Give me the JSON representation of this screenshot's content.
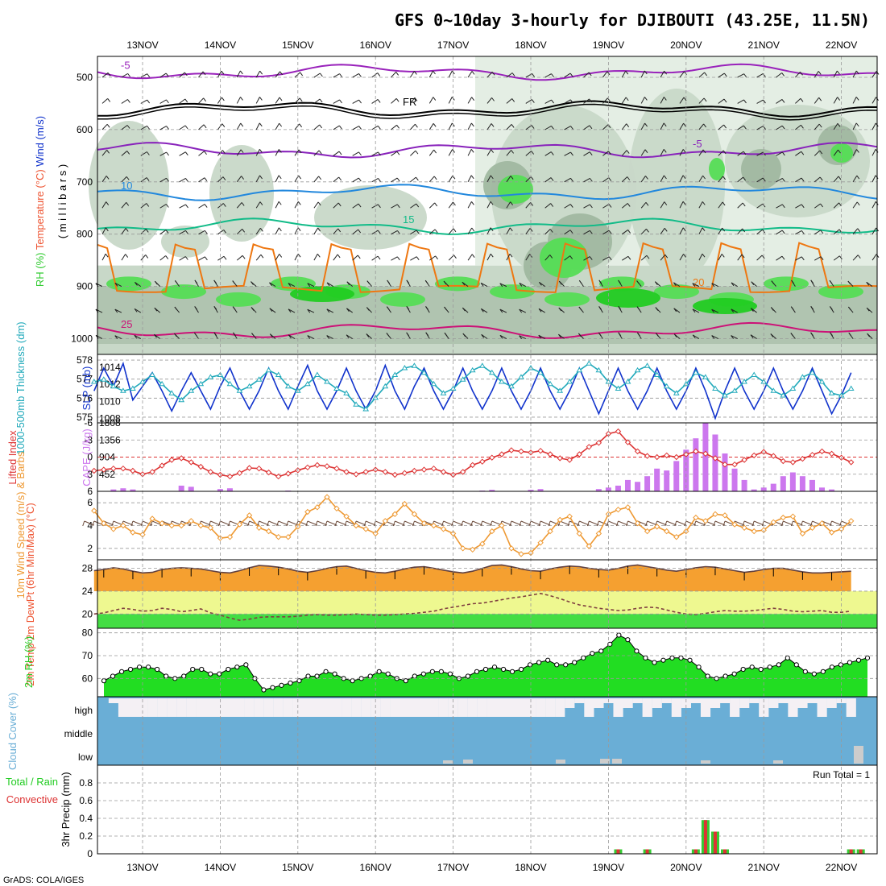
{
  "title": "GFS 0~10day 3-hourly for DJIBOUTI (43.25E, 11.5N)",
  "credit": "GrADS: COLA/IGES",
  "run_total": "Run Total = 1",
  "chart_data": [
    {
      "panel": "upper-air",
      "type": "heatmap",
      "ylabel_parts": [
        "RH (%)",
        "Temperature (°C)",
        "Wind (m/s)"
      ],
      "ylabel_unit": "( m i l l i b a r s )",
      "yticks": [
        "500",
        "600",
        "700",
        "800",
        "900",
        "1000"
      ],
      "ylim": [
        1030,
        460
      ],
      "isotherms": [
        {
          "label": "-5",
          "level": 490,
          "color": "#9922bb"
        },
        {
          "label": "FR",
          "level": 560,
          "color": "#000000"
        },
        {
          "label": "-5",
          "level": 640,
          "color": "#8822bb"
        },
        {
          "label": "10",
          "level": 720,
          "color": "#2288dd"
        },
        {
          "label": "15",
          "level": 785,
          "color": "#11bb88"
        },
        {
          "label": "20",
          "level": 905,
          "color": "#ee7711"
        },
        {
          "label": "25",
          "level": 985,
          "color": "#cc1177"
        }
      ],
      "colors": {
        "rh_light": "#e4eee4",
        "rh_mid": "#c8d8c8",
        "rh_dark": "#a0b8a0",
        "rh_green": "#55dd55",
        "rh_bright": "#22cc22"
      }
    },
    {
      "panel": "thickness-slp",
      "type": "line",
      "ylabel_left": "1000-500mb Thickness (dm)",
      "ylabel_right": "SLP (mb)",
      "yticks_left": [
        "575",
        "576",
        "577",
        "578"
      ],
      "yticks_right": [
        "1008",
        "1010",
        "1012",
        "1014"
      ],
      "series": [
        {
          "name": "SLP (mb)",
          "color": "#1133cc",
          "values": [
            1012,
            1014.5,
            1012.5,
            1015,
            1011,
            1012.5,
            1014,
            1012,
            1009.8,
            1012,
            1014,
            1012,
            1010,
            1012.5,
            1014.5,
            1012,
            1010,
            1012,
            1014.5,
            1012,
            1010,
            1012.5,
            1014.8,
            1012,
            1010,
            1012,
            1014.5,
            1012,
            1010,
            1012,
            1014.8,
            1012,
            1010,
            1012.5,
            1014.5,
            1012,
            1010,
            1012,
            1014.5,
            1012,
            1010,
            1012,
            1014.5,
            1012,
            1010,
            1012,
            1014.5,
            1012,
            1010,
            1012,
            1014.5,
            1012,
            1009.5,
            1012,
            1014.5,
            1012,
            1010,
            1012,
            1014.5,
            1012,
            1010,
            1012,
            1014.5,
            1012,
            1009,
            1012,
            1014.5,
            1012,
            1010,
            1012,
            1014.5,
            1012,
            1010,
            1012,
            1014.5,
            1012,
            1009.5,
            1011.5,
            1014
          ]
        },
        {
          "name": "1000-500mb Thickness (dm)",
          "color": "#22aabb",
          "values": [
            576.6,
            576.7,
            576.4,
            576.2,
            576.3,
            576.6,
            576.9,
            576.5,
            576.1,
            575.8,
            576.2,
            576.5,
            576.8,
            576.9,
            576.5,
            576.2,
            576.4,
            576.7,
            577.1,
            576.9,
            576.4,
            576.2,
            576.5,
            576.9,
            576.6,
            576.3,
            576.1,
            575.6,
            575.4,
            575.9,
            576.4,
            576.9,
            577.2,
            577.3,
            577.0,
            576.5,
            576.1,
            576.3,
            576.7,
            577.1,
            577.3,
            577.0,
            576.6,
            576.4,
            576.8,
            577.2,
            577.0,
            576.5,
            576.2,
            576.6,
            577.1,
            577.4,
            577.1,
            576.6,
            576.3,
            576.6,
            577.1,
            577.3,
            576.9,
            576.4,
            576.1,
            576.5,
            577.0,
            576.8,
            576.3,
            576.0,
            576.2,
            576.6,
            576.9,
            576.6,
            576.2,
            576.0,
            576.3,
            576.8,
            577.0,
            576.6,
            576.1,
            576.0,
            576.3
          ]
        }
      ]
    },
    {
      "panel": "li-cape",
      "type": "bar",
      "ylabel_left": "Lifted Index",
      "ylabel_right": "CAPE (J/kg)",
      "yticks_left": [
        "-6",
        "-3",
        "0",
        "3",
        "6"
      ],
      "yticks_right": [
        "452",
        "904",
        "1356",
        "1808"
      ],
      "series": [
        {
          "name": "Lifted Index",
          "color": "#dd3333",
          "values": [
            2.4,
            2.2,
            2.0,
            2.0,
            2.4,
            3.0,
            2.6,
            1.5,
            0.5,
            0.2,
            0.9,
            1.7,
            2.6,
            3.1,
            3.4,
            2.8,
            1.9,
            2.0,
            2.7,
            3.4,
            2.9,
            2.3,
            1.8,
            1.4,
            1.6,
            2.0,
            2.6,
            3.0,
            2.6,
            2.2,
            2.6,
            3.1,
            2.8,
            2.4,
            2.2,
            2.0,
            2.6,
            3.1,
            2.6,
            1.4,
            0.8,
            0.1,
            -0.5,
            -1.2,
            -1.0,
            -0.8,
            -1.1,
            -0.5,
            0.2,
            0.5,
            -0.5,
            -1.8,
            -2.5,
            -4.1,
            -4.5,
            -2.6,
            -1.0,
            -0.2,
            0.0,
            -0.3,
            0.0,
            -0.5,
            -1.0,
            -0.6,
            0.2,
            1.3,
            1.3,
            0.5,
            -0.3,
            -0.9,
            -0.2,
            0.7,
            0.9,
            0.3,
            -0.4,
            -1.0,
            -0.6,
            0.1,
            0.9
          ]
        },
        {
          "name": "CAPE (J/kg)",
          "color": "#cc77ee",
          "values": [
            0,
            0,
            50,
            80,
            50,
            0,
            0,
            0,
            0,
            150,
            120,
            0,
            0,
            60,
            80,
            0,
            0,
            0,
            0,
            0,
            20,
            0,
            0,
            0,
            0,
            0,
            0,
            0,
            0,
            0,
            0,
            0,
            0,
            0,
            0,
            0,
            0,
            0,
            0,
            0,
            20,
            40,
            0,
            0,
            0,
            40,
            60,
            0,
            0,
            0,
            0,
            0,
            60,
            100,
            150,
            300,
            250,
            400,
            600,
            550,
            800,
            1100,
            1400,
            1800,
            1500,
            1000,
            600,
            300,
            50,
            100,
            200,
            400,
            500,
            400,
            300,
            100,
            50,
            0,
            0
          ]
        }
      ]
    },
    {
      "panel": "wind10m",
      "type": "line",
      "ylabel": "10m Wind Speed (m/s) & Barbs",
      "yticks": [
        "2",
        "4",
        "6"
      ],
      "series": [
        {
          "name": "10m Wind Speed",
          "color": "#ee9933",
          "values": [
            5.3,
            4.2,
            3.7,
            4.0,
            3.4,
            3.2,
            4.6,
            4.2,
            4.0,
            4.0,
            4.4,
            4.0,
            3.8,
            2.9,
            3.0,
            4.1,
            4.9,
            3.8,
            3.5,
            3.0,
            3.0,
            3.9,
            5.2,
            5.6,
            6.5,
            5.5,
            4.8,
            4.0,
            3.7,
            3.3,
            4.4,
            5.0,
            5.9,
            5.0,
            4.2,
            4.0,
            3.7,
            3.3,
            2.0,
            1.9,
            2.4,
            3.5,
            4.0,
            2.0,
            1.5,
            1.6,
            2.5,
            3.5,
            4.5,
            4.8,
            3.3,
            2.2,
            3.3,
            5.0,
            5.4,
            5.6,
            4.2,
            3.5,
            3.9,
            3.5,
            3.0,
            3.5,
            4.7,
            4.4,
            5.0,
            4.9,
            4.1,
            3.8,
            3.5,
            3.6,
            4.3,
            4.7,
            4.8,
            3.3,
            3.8,
            4.2,
            3.4,
            3.7,
            4.4
          ]
        }
      ]
    },
    {
      "panel": "temp2m",
      "type": "area",
      "ylabel": "2m Temp 2m DewPt (6hr Min/Max) (°C)",
      "yticks": [
        "20",
        "24",
        "28"
      ],
      "series": [
        {
          "name": "2m Temp",
          "color": "#f5a030",
          "values": [
            27.6,
            27.8,
            28.1,
            27.9,
            27.5,
            27.2,
            27.3,
            27.8,
            28.0,
            28.1,
            28.0,
            27.9,
            27.6,
            27.3,
            27.2,
            27.6,
            28.1,
            28.5,
            28.4,
            28.2,
            27.9,
            27.5,
            27.3,
            27.6,
            28.0,
            28.3,
            28.4,
            28.0,
            27.6,
            27.3,
            27.2,
            27.5,
            27.9,
            28.2,
            28.3,
            28.0,
            27.7,
            27.4,
            27.2,
            27.5,
            28.0,
            28.5,
            28.6,
            28.3,
            27.9,
            27.6,
            27.5,
            27.9,
            28.2,
            28.4,
            28.3,
            28.0,
            27.8,
            27.7,
            28.0,
            28.4,
            28.6,
            28.3,
            28.0,
            27.7,
            27.5,
            27.8,
            28.1,
            28.3,
            28.2,
            27.9,
            27.6,
            27.3,
            27.5,
            27.8,
            28.0,
            28.0,
            27.7,
            27.4,
            27.2,
            27.2,
            27.3,
            27.4,
            27.5
          ]
        },
        {
          "name": "2m DewPt",
          "color": "#804040",
          "values": [
            20.0,
            20.2,
            20.6,
            21.0,
            20.8,
            20.5,
            20.6,
            21.0,
            20.8,
            20.4,
            20.6,
            20.9,
            20.2,
            19.8,
            19.3,
            18.9,
            19.1,
            19.4,
            19.5,
            19.5,
            19.5,
            19.6,
            19.8,
            19.9,
            19.8,
            19.8,
            19.9,
            20.0,
            19.9,
            19.8,
            19.8,
            19.9,
            20.0,
            20.1,
            20.3,
            20.5,
            20.9,
            21.2,
            21.5,
            21.8,
            21.9,
            22.2,
            22.5,
            22.8,
            23.0,
            23.3,
            23.6,
            23.2,
            22.7,
            22.1,
            21.6,
            21.3,
            21.0,
            20.8,
            20.6,
            20.7,
            21.0,
            21.2,
            21.1,
            20.7,
            20.3,
            20.0,
            19.9,
            20.1,
            20.4,
            20.6,
            20.5,
            20.5,
            20.6,
            20.8,
            21.0,
            20.8,
            20.5,
            20.4,
            20.5,
            20.6,
            20.3,
            20.3,
            20.5
          ]
        }
      ],
      "colors": {
        "band_yellow": "#eef890",
        "band_green": "#44dd44",
        "band_orange": "#f5a030",
        "band_red": "#ee5522"
      }
    },
    {
      "panel": "rh2m",
      "type": "area",
      "ylabel": "2m RH (%)",
      "yticks": [
        "60",
        "70",
        "80"
      ],
      "series": [
        {
          "name": "2m RH",
          "color": "#22dd22",
          "values": [
            59,
            61,
            63,
            64,
            65,
            65,
            64,
            61,
            60,
            61,
            64,
            64,
            62,
            62,
            64,
            65,
            66,
            60,
            55,
            56,
            57,
            58,
            59,
            61,
            61,
            63,
            62,
            60,
            59,
            60,
            61,
            63,
            62,
            60,
            59,
            61,
            62,
            63,
            63,
            62,
            60,
            61,
            63,
            64,
            65,
            64,
            63,
            64,
            66,
            67,
            68,
            66,
            66,
            67,
            69,
            71,
            72,
            75,
            79,
            77,
            72,
            69,
            67,
            68,
            69,
            69,
            68,
            65,
            61,
            60,
            61,
            62,
            64,
            65,
            64,
            65,
            66,
            69,
            66,
            63,
            62,
            63,
            65,
            66,
            67,
            68,
            69
          ]
        }
      ]
    },
    {
      "panel": "cloud",
      "type": "bar",
      "ylabel": "Cloud Cover (%)",
      "categories": [
        "high",
        "middle",
        "low"
      ],
      "colors": {
        "cloud": "#6aaed6",
        "clear": "#f4f0f4",
        "low": "#cccccc"
      }
    },
    {
      "panel": "precip",
      "type": "bar",
      "ylabel": "3hr Precip (mm)",
      "legend": [
        "Total / Rain",
        "Convective"
      ],
      "yticks": [
        "0",
        "0.2",
        "0.4",
        "0.6",
        "0.8"
      ],
      "ylim": [
        0,
        1.0
      ],
      "series": [
        {
          "name": "Total",
          "color": "#33cc33",
          "values": [
            {
              "t": 54,
              "v": 0.05
            },
            {
              "t": 57,
              "v": 0.05
            },
            {
              "t": 62,
              "v": 0.05
            },
            {
              "t": 63,
              "v": 0.38
            },
            {
              "t": 64,
              "v": 0.25
            },
            {
              "t": 65,
              "v": 0.05
            },
            {
              "t": 78,
              "v": 0.05
            },
            {
              "t": 79,
              "v": 0.05
            }
          ]
        }
      ]
    }
  ],
  "x_axis": {
    "labels": [
      "13NOV",
      "14NOV",
      "15NOV",
      "16NOV",
      "17NOV",
      "18NOV",
      "19NOV",
      "20NOV",
      "21NOV",
      "22NOV"
    ]
  }
}
